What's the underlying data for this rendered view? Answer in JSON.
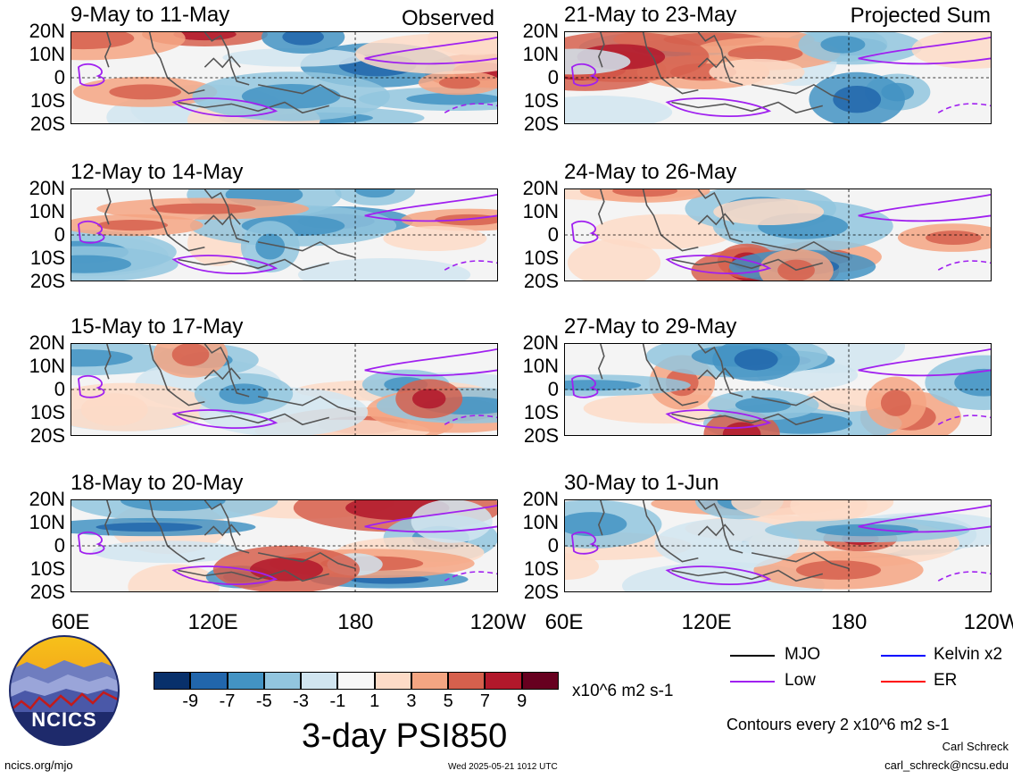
{
  "header": {
    "observed": "Observed",
    "projected": "Projected Sum"
  },
  "lat_labels": [
    "20N",
    "10N",
    "0",
    "10S",
    "20S"
  ],
  "lon_labels": [
    "60E",
    "120E",
    "180",
    "120W"
  ],
  "panels": {
    "observed": [
      "9-May to 11-May",
      "12-May to 14-May",
      "15-May to 17-May",
      "18-May to 20-May"
    ],
    "projected": [
      "21-May to 23-May",
      "24-May to 26-May",
      "27-May to 29-May",
      "30-May to 1-Jun"
    ]
  },
  "colorbar": {
    "labels": [
      "-9",
      "-7",
      "-5",
      "-3",
      "-1",
      "1",
      "3",
      "5",
      "7",
      "9"
    ],
    "colors": [
      "#08306b",
      "#2166ac",
      "#4393c3",
      "#92c5de",
      "#d1e5f0",
      "#f7f7f7",
      "#fddbc7",
      "#f4a582",
      "#d6604d",
      "#b2182b",
      "#67001f"
    ],
    "units": "x10^6 m2 s-1"
  },
  "title": "3-day PSI850",
  "legend": {
    "mjo": "MJO",
    "kelvin": "Kelvin x2",
    "low": "Low",
    "er": "ER",
    "colors": {
      "mjo": "#000000",
      "kelvin": "#0000ff",
      "low": "#a020f0",
      "er": "#ff0000"
    }
  },
  "contour_note": "Contours every 2 x10^6 m2 s-1",
  "author": "Carl Schreck",
  "email": "carl_schreck@ncsu.edu",
  "website": "ncics.org/mjo",
  "timestamp": "Wed 2025-05-21 1012 UTC",
  "logo_text": "NCICS"
}
